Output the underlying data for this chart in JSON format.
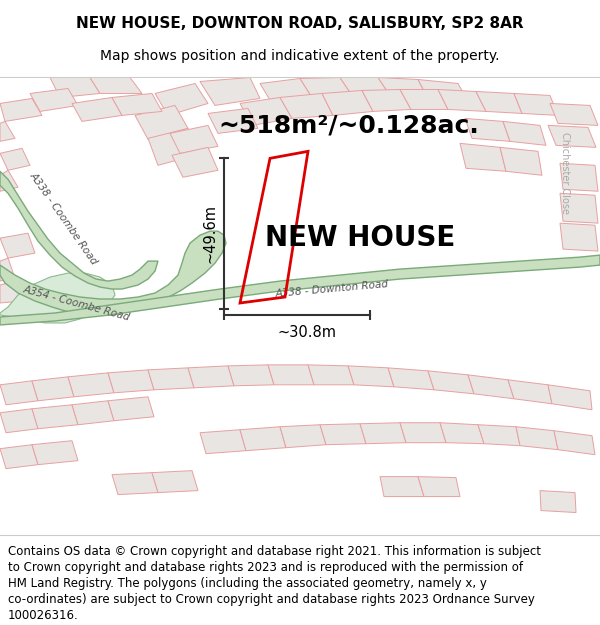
{
  "title_line1": "NEW HOUSE, DOWNTON ROAD, SALISBURY, SP2 8AR",
  "title_line2": "Map shows position and indicative extent of the property.",
  "area_label": "~518m²/~0.128ac.",
  "property_label": "NEW HOUSE",
  "dim_vertical": "~49.6m",
  "dim_horizontal": "~30.8m",
  "footer_text": "Contains OS data © Crown copyright and database right 2021. This information is subject to Crown copyright and database rights 2023 and is reproduced with the permission of HM Land Registry. The polygons (including the associated geometry, namely x, y co-ordinates) are subject to Crown copyright and database rights 2023 Ordnance Survey 100026316.",
  "map_bg": "#f5f3f0",
  "road_green_fill": "#c8dfc0",
  "road_green_stroke": "#7aaa7a",
  "road_green_fill_dark": "#b0ccb0",
  "property_outline_color": "#dd0000",
  "dim_line_color": "#333333",
  "cadastral_edge": "#e8a0a0",
  "cadastral_fill": "#e8e5e3",
  "street_label_color": "#555555",
  "chichester_label_color": "#aaaaaa",
  "title_fontsize": 11,
  "subtitle_fontsize": 10,
  "footer_fontsize": 8.5,
  "area_fontsize": 18,
  "property_label_fontsize": 20,
  "dim_fontsize": 10.5,
  "road_label_fontsize": 7.5
}
